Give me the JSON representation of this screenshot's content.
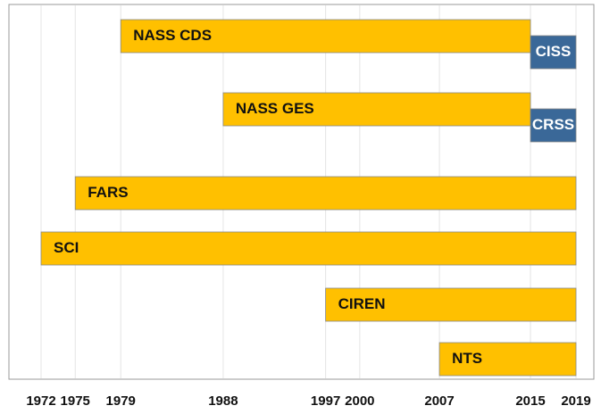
{
  "chart_data": {
    "type": "timeline",
    "xlim": [
      1972,
      2019
    ],
    "xticks": [
      1972,
      1975,
      1979,
      1988,
      1997,
      2000,
      2007,
      2015,
      2019
    ],
    "grid": true,
    "rows": [
      [
        {
          "name": "NASS CDS",
          "start": 1979,
          "end": 2015,
          "color": "#ffc000"
        },
        {
          "name": "CISS",
          "start": 2015,
          "end": 2019,
          "color": "#3a6898"
        }
      ],
      [
        {
          "name": "NASS GES",
          "start": 1988,
          "end": 2015,
          "color": "#ffc000"
        },
        {
          "name": "CRSS",
          "start": 2015,
          "end": 2019,
          "color": "#3a6898"
        }
      ],
      [
        {
          "name": "FARS",
          "start": 1975,
          "end": 2019,
          "color": "#ffc000"
        }
      ],
      [
        {
          "name": "SCI",
          "start": 1972,
          "end": 2019,
          "color": "#ffc000"
        }
      ],
      [
        {
          "name": "CIREN",
          "start": 1997,
          "end": 2019,
          "color": "#ffc000"
        }
      ],
      [
        {
          "name": "NTS",
          "start": 2007,
          "end": 2019,
          "color": "#ffc000"
        }
      ]
    ]
  }
}
